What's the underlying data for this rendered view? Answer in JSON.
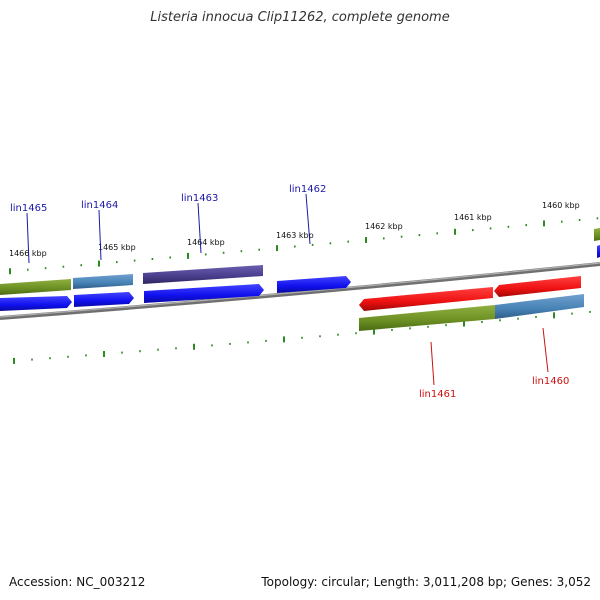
{
  "title": "Listeria innocua Clip11262, complete genome",
  "footer": {
    "accession": "Accession: NC_003212",
    "stats": "Topology: circular; Length: 3,011,208 bp; Genes: 3,052"
  },
  "colors": {
    "backbone": "#808080",
    "tick": "#2e8b22",
    "cds_forward": "#1010ee",
    "cds_reverse": "#ee1111",
    "cog_green": "#6b8e23",
    "cog_steelblue": "#4682b4",
    "cog_darkslate": "#483d8b",
    "label_forward": "#1a1aa6",
    "label_reverse": "#cc1111"
  },
  "scale_labels": [
    "1466 kbp",
    "1465 kbp",
    "1464 kbp",
    "1463 kbp",
    "1462 kbp",
    "1461 kbp",
    "1460 kbp"
  ],
  "genes": [
    {
      "name": "lin1465",
      "strand": "forward"
    },
    {
      "name": "lin1464",
      "strand": "forward"
    },
    {
      "name": "lin1463",
      "strand": "forward"
    },
    {
      "name": "lin1462",
      "strand": "forward"
    },
    {
      "name": "lin1461",
      "strand": "reverse"
    },
    {
      "name": "lin1460",
      "strand": "reverse"
    }
  ]
}
